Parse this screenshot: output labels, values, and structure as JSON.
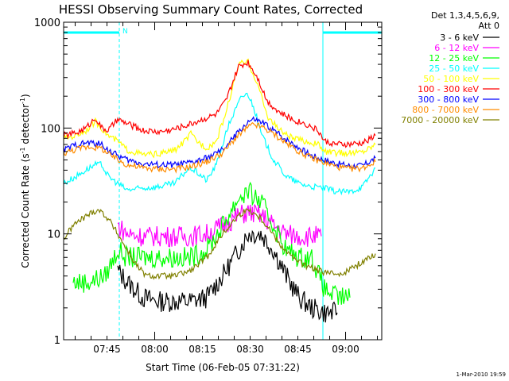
{
  "chart_data": {
    "type": "line",
    "title": "HESSI Observing Summary Count Rates, Corrected",
    "xlabel": "Start Time (06-Feb-05 07:31:22)",
    "ylabel_main": "Corrected Count Rate (s",
    "ylabel_sup1": "-1",
    "ylabel_mid": " detector",
    "ylabel_sup2": "-1",
    "ylabel_end": ")",
    "yscale": "log",
    "ylim": [
      1,
      1000
    ],
    "xlim_minutes": [
      0,
      100
    ],
    "x_ticks": [
      "07:45",
      "08:00",
      "08:15",
      "08:30",
      "08:45",
      "09:00"
    ],
    "x_tick_minutes": [
      13.63,
      28.63,
      43.63,
      58.63,
      73.63,
      88.63
    ],
    "y_ticks": [
      "1",
      "10",
      "100",
      "1000"
    ],
    "y_tick_values": [
      1,
      10,
      100,
      1000
    ],
    "legend_title_1": "Det 1,3,4,5,6,9,",
    "legend_title_2": "Att 0",
    "legend_position": "right",
    "night_marker_label": "N",
    "night_intervals_minutes": [
      [
        0,
        17.5
      ],
      [
        81.5,
        100
      ]
    ],
    "series": [
      {
        "name": "3 - 6 keV",
        "color": "#000000",
        "points": [
          [
            17,
            4.5
          ],
          [
            20,
            3.5
          ],
          [
            25,
            2.5
          ],
          [
            30,
            2.3
          ],
          [
            35,
            2.3
          ],
          [
            40,
            2.3
          ],
          [
            45,
            2.5
          ],
          [
            50,
            4
          ],
          [
            55,
            7
          ],
          [
            58,
            10
          ],
          [
            62,
            10
          ],
          [
            66,
            7
          ],
          [
            70,
            4
          ],
          [
            74,
            2.5
          ],
          [
            78,
            2
          ],
          [
            82,
            1.8
          ],
          [
            86,
            1.8
          ]
        ]
      },
      {
        "name": "6 - 12 keV",
        "color": "#ff00ff",
        "points": [
          [
            17,
            12
          ],
          [
            20,
            10
          ],
          [
            25,
            9.5
          ],
          [
            30,
            9.5
          ],
          [
            35,
            9.5
          ],
          [
            40,
            9.5
          ],
          [
            45,
            10
          ],
          [
            50,
            12
          ],
          [
            55,
            15
          ],
          [
            58,
            16
          ],
          [
            62,
            15
          ],
          [
            66,
            12
          ],
          [
            70,
            10
          ],
          [
            74,
            9.5
          ],
          [
            78,
            9.5
          ],
          [
            81,
            9.5
          ]
        ]
      },
      {
        "name": "12 - 25 keV",
        "color": "#00ff00",
        "points": [
          [
            3,
            3.5
          ],
          [
            8,
            3.5
          ],
          [
            13,
            4
          ],
          [
            17,
            7
          ],
          [
            20,
            6
          ],
          [
            25,
            6
          ],
          [
            30,
            6
          ],
          [
            35,
            6
          ],
          [
            40,
            6
          ],
          [
            45,
            7
          ],
          [
            50,
            12
          ],
          [
            55,
            22
          ],
          [
            58,
            25
          ],
          [
            62,
            20
          ],
          [
            66,
            12
          ],
          [
            70,
            7
          ],
          [
            74,
            6
          ],
          [
            78,
            6
          ],
          [
            82,
            3
          ],
          [
            86,
            2.5
          ],
          [
            90,
            2.5
          ]
        ]
      },
      {
        "name": "25 - 50 keV",
        "color": "#00ffff",
        "points": [
          [
            0,
            30
          ],
          [
            4,
            35
          ],
          [
            8,
            42
          ],
          [
            10,
            45
          ],
          [
            12,
            45
          ],
          [
            14,
            35
          ],
          [
            17,
            30
          ],
          [
            20,
            26
          ],
          [
            25,
            27
          ],
          [
            30,
            28
          ],
          [
            35,
            30
          ],
          [
            38,
            38
          ],
          [
            40,
            42
          ],
          [
            43,
            36
          ],
          [
            45,
            32
          ],
          [
            48,
            45
          ],
          [
            52,
            110
          ],
          [
            56,
            200
          ],
          [
            58,
            210
          ],
          [
            60,
            150
          ],
          [
            62,
            90
          ],
          [
            66,
            50
          ],
          [
            70,
            35
          ],
          [
            74,
            30
          ],
          [
            78,
            28
          ],
          [
            82,
            27
          ],
          [
            86,
            25
          ],
          [
            90,
            25
          ],
          [
            94,
            28
          ],
          [
            98,
            42
          ]
        ]
      },
      {
        "name": "50 - 100 keV",
        "color": "#ffff00",
        "points": [
          [
            0,
            80
          ],
          [
            4,
            85
          ],
          [
            7,
            95
          ],
          [
            10,
            115
          ],
          [
            12,
            100
          ],
          [
            14,
            85
          ],
          [
            17,
            75
          ],
          [
            20,
            62
          ],
          [
            25,
            56
          ],
          [
            30,
            57
          ],
          [
            35,
            62
          ],
          [
            38,
            75
          ],
          [
            40,
            88
          ],
          [
            42,
            75
          ],
          [
            45,
            65
          ],
          [
            48,
            75
          ],
          [
            51,
            140
          ],
          [
            55,
            400
          ],
          [
            58,
            420
          ],
          [
            61,
            260
          ],
          [
            64,
            130
          ],
          [
            68,
            95
          ],
          [
            72,
            80
          ],
          [
            76,
            75
          ],
          [
            80,
            70
          ],
          [
            82,
            60
          ],
          [
            86,
            58
          ],
          [
            90,
            58
          ],
          [
            94,
            60
          ],
          [
            98,
            70
          ]
        ]
      },
      {
        "name": "100 - 300 keV",
        "color": "#ff0000",
        "points": [
          [
            0,
            85
          ],
          [
            4,
            90
          ],
          [
            7,
            100
          ],
          [
            10,
            125
          ],
          [
            12,
            100
          ],
          [
            14,
            95
          ],
          [
            17,
            120
          ],
          [
            20,
            110
          ],
          [
            25,
            95
          ],
          [
            30,
            92
          ],
          [
            35,
            98
          ],
          [
            40,
            110
          ],
          [
            45,
            125
          ],
          [
            48,
            135
          ],
          [
            51,
            180
          ],
          [
            55,
            380
          ],
          [
            58,
            420
          ],
          [
            61,
            300
          ],
          [
            64,
            180
          ],
          [
            68,
            140
          ],
          [
            72,
            120
          ],
          [
            76,
            110
          ],
          [
            80,
            95
          ],
          [
            82,
            75
          ],
          [
            86,
            70
          ],
          [
            90,
            70
          ],
          [
            94,
            72
          ],
          [
            98,
            85
          ]
        ]
      },
      {
        "name": "300 - 800 keV",
        "color": "#0000ff",
        "points": [
          [
            0,
            62
          ],
          [
            4,
            70
          ],
          [
            8,
            73
          ],
          [
            12,
            70
          ],
          [
            14,
            62
          ],
          [
            17,
            55
          ],
          [
            20,
            50
          ],
          [
            25,
            46
          ],
          [
            30,
            45
          ],
          [
            35,
            45
          ],
          [
            40,
            47
          ],
          [
            45,
            52
          ],
          [
            50,
            62
          ],
          [
            54,
            85
          ],
          [
            58,
            115
          ],
          [
            60,
            120
          ],
          [
            63,
            110
          ],
          [
            66,
            95
          ],
          [
            70,
            78
          ],
          [
            74,
            65
          ],
          [
            78,
            55
          ],
          [
            82,
            50
          ],
          [
            86,
            46
          ],
          [
            90,
            44
          ],
          [
            94,
            44
          ],
          [
            98,
            52
          ]
        ]
      },
      {
        "name": "800 - 7000 keV",
        "color": "#ff8c00",
        "points": [
          [
            0,
            58
          ],
          [
            4,
            63
          ],
          [
            8,
            67
          ],
          [
            12,
            64
          ],
          [
            14,
            57
          ],
          [
            17,
            50
          ],
          [
            20,
            45
          ],
          [
            25,
            42
          ],
          [
            30,
            41
          ],
          [
            35,
            41
          ],
          [
            40,
            43
          ],
          [
            45,
            48
          ],
          [
            50,
            58
          ],
          [
            54,
            80
          ],
          [
            58,
            102
          ],
          [
            60,
            108
          ],
          [
            63,
            100
          ],
          [
            66,
            88
          ],
          [
            70,
            72
          ],
          [
            74,
            60
          ],
          [
            78,
            52
          ],
          [
            82,
            47
          ],
          [
            86,
            43
          ],
          [
            90,
            41
          ],
          [
            94,
            42
          ],
          [
            98,
            48
          ]
        ]
      },
      {
        "name": "7000 - 20000 keV",
        "color": "#808000",
        "points": [
          [
            0,
            9
          ],
          [
            3,
            12
          ],
          [
            6,
            14
          ],
          [
            9,
            16
          ],
          [
            11,
            17
          ],
          [
            14,
            14
          ],
          [
            17,
            10
          ],
          [
            20,
            7
          ],
          [
            23,
            5
          ],
          [
            26,
            4
          ],
          [
            30,
            4
          ],
          [
            35,
            4
          ],
          [
            40,
            4.5
          ],
          [
            45,
            6
          ],
          [
            50,
            10
          ],
          [
            55,
            15
          ],
          [
            58,
            17
          ],
          [
            61,
            15
          ],
          [
            64,
            12
          ],
          [
            68,
            8
          ],
          [
            72,
            6
          ],
          [
            76,
            5
          ],
          [
            80,
            4.5
          ],
          [
            84,
            4.2
          ],
          [
            88,
            4.3
          ],
          [
            92,
            5
          ],
          [
            96,
            6
          ],
          [
            98,
            6.5
          ]
        ]
      }
    ]
  },
  "footer": {
    "timestamp": "1-Mar-2010 19:59"
  }
}
